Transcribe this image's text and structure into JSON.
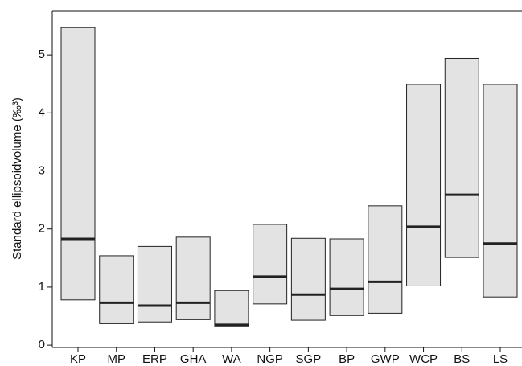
{
  "chart_data": {
    "type": "floating_bar",
    "y_label": "Standard ellipsoidvolume (‰³)",
    "categories": [
      "KP",
      "MP",
      "ERP",
      "GHA",
      "WA",
      "NGP",
      "SGP",
      "BP",
      "GWP",
      "WCP",
      "BS",
      "LS"
    ],
    "low": [
      0.78,
      0.37,
      0.4,
      0.44,
      0.33,
      0.71,
      0.43,
      0.51,
      0.55,
      1.02,
      1.51,
      0.83
    ],
    "median": [
      1.83,
      0.73,
      0.68,
      0.73,
      0.35,
      1.18,
      0.87,
      0.97,
      1.09,
      2.04,
      2.59,
      1.75
    ],
    "high": [
      5.47,
      1.54,
      1.7,
      1.86,
      0.94,
      2.08,
      1.84,
      1.83,
      2.4,
      4.49,
      4.94,
      4.49
    ],
    "color": "#e3e3e3",
    "median_color": "#222222",
    "ylim": [
      -0.04,
      5.75
    ],
    "yticks": [
      0,
      1,
      2,
      3,
      4,
      5
    ]
  }
}
